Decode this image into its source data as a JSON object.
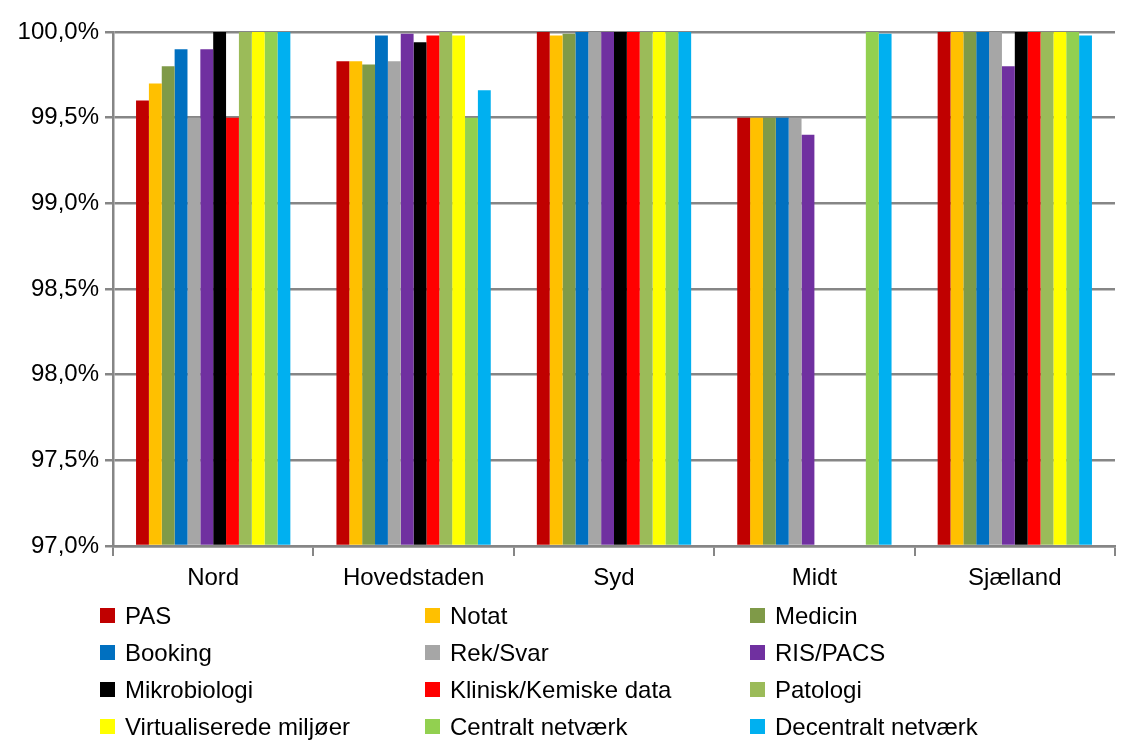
{
  "chart_data": {
    "type": "bar",
    "categories": [
      "Nord",
      "Hovedstaden",
      "Syd",
      "Midt",
      "Sjælland"
    ],
    "ylim": [
      97,
      100
    ],
    "yticks": [
      {
        "value": 97,
        "label": "97,0%"
      },
      {
        "value": 97.5,
        "label": "97,5%"
      },
      {
        "value": 98,
        "label": "98,0%"
      },
      {
        "value": 98.5,
        "label": "98,5%"
      },
      {
        "value": 99,
        "label": "99,0%"
      },
      {
        "value": 99.5,
        "label": "99,5%"
      },
      {
        "value": 100,
        "label": "100,0%"
      }
    ],
    "grid": "y",
    "legend": "bottom",
    "series": [
      {
        "name": "PAS",
        "color": "#c00000",
        "values": [
          99.6,
          99.83,
          100,
          99.5,
          100
        ]
      },
      {
        "name": "Notat",
        "color": "#ffc000",
        "values": [
          99.7,
          99.83,
          99.98,
          99.5,
          100
        ]
      },
      {
        "name": "Medicin",
        "color": "#7f9a48",
        "values": [
          99.8,
          99.81,
          99.99,
          99.5,
          100
        ]
      },
      {
        "name": "Booking",
        "color": "#0070c0",
        "values": [
          99.9,
          99.98,
          100,
          99.5,
          100
        ]
      },
      {
        "name": "Rek/Svar",
        "color": "#a6a6a6",
        "values": [
          99.5,
          99.83,
          100,
          99.5,
          100
        ]
      },
      {
        "name": "RIS/PACS",
        "color": "#7030a0",
        "values": [
          99.9,
          99.99,
          100,
          99.4,
          99.8
        ]
      },
      {
        "name": "Mikrobiologi",
        "color": "#000000",
        "values": [
          100,
          99.94,
          100,
          null,
          100
        ]
      },
      {
        "name": "Klinisk/Kemiske data",
        "color": "#ff0000",
        "values": [
          99.5,
          99.98,
          100,
          null,
          100
        ]
      },
      {
        "name": "Patologi",
        "color": "#9bbb59",
        "values": [
          100,
          100,
          100,
          null,
          100
        ]
      },
      {
        "name": "Virtualiserede miljøer",
        "color": "#ffff00",
        "values": [
          100,
          99.98,
          100,
          null,
          100
        ]
      },
      {
        "name": "Centralt netværk",
        "color": "#92d050",
        "values": [
          100,
          99.5,
          100,
          100,
          100
        ]
      },
      {
        "name": "Decentralt netværk",
        "color": "#00b0f0",
        "values": [
          100,
          99.66,
          100,
          99.99,
          99.98
        ]
      }
    ]
  }
}
